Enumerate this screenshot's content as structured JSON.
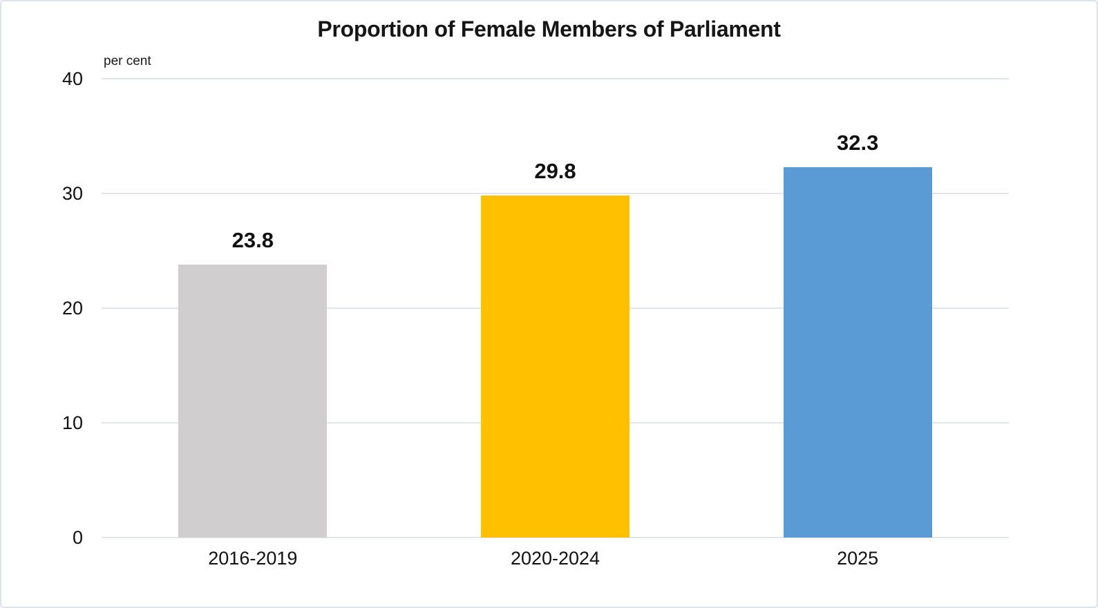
{
  "chart_data": {
    "type": "bar",
    "title": "Proportion of Female Members of Parliament",
    "unit_label": "per cent",
    "categories": [
      "2016-2019",
      "2020-2024",
      "2025"
    ],
    "values": [
      23.8,
      29.8,
      32.3
    ],
    "value_labels": [
      "23.8",
      "29.8",
      "32.3"
    ],
    "bar_colors": [
      "#D0CECE",
      "#FFC000",
      "#5B9BD5"
    ],
    "ylim": [
      0,
      40
    ],
    "yticks": [
      0,
      10,
      20,
      30,
      40
    ],
    "xlabel": "",
    "ylabel": "per cent",
    "grid": true,
    "legend": false
  },
  "colors": {
    "gridline": "#e2e6ec",
    "frame_border": "#dde2e9",
    "text": "#111111"
  }
}
